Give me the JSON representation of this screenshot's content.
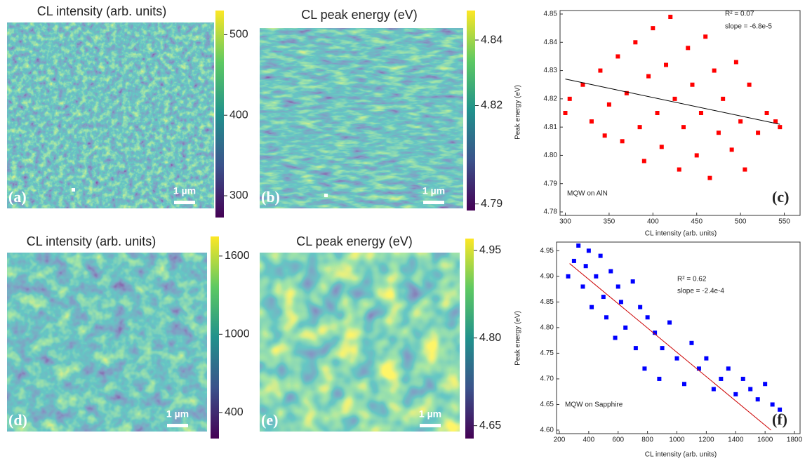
{
  "chart_data": [
    {
      "type": "heatmap",
      "title": "CL intensity (arb. units)",
      "clim": [
        273,
        530
      ],
      "cticks": [
        300,
        400,
        500
      ],
      "panel_label": "(a)",
      "scale_label": "1 µm"
    },
    {
      "type": "heatmap",
      "title": "CL peak energy (eV)",
      "clim": [
        4.788,
        4.849
      ],
      "cticks": [
        4.79,
        4.82,
        4.84
      ],
      "panel_label": "(b)",
      "scale_label": "1 µm"
    },
    {
      "type": "scatter",
      "xlabel": "CL intensity (arb. units)",
      "ylabel": "Peak energy (eV)",
      "panel_label": "(c)",
      "annotations": [
        "R² = 0.07",
        "slope = -6.8e-5",
        "MQW on AlN"
      ],
      "xlim": [
        294,
        568
      ],
      "ylim": [
        4.78,
        4.85
      ],
      "xticks": [
        300,
        350,
        400,
        450,
        500,
        550
      ],
      "yticks": [
        4.78,
        4.79,
        {
          "value": 4.8,
          "label": "4.80"
        },
        4.81,
        4.82,
        4.83,
        4.84,
        4.85
      ],
      "color": "#ff0000",
      "x": [
        300,
        305,
        320,
        330,
        340,
        345,
        350,
        360,
        365,
        370,
        380,
        385,
        390,
        395,
        400,
        405,
        410,
        415,
        420,
        425,
        430,
        435,
        440,
        445,
        450,
        455,
        460,
        465,
        470,
        475,
        480,
        490,
        495,
        500,
        505,
        510,
        520,
        530,
        540,
        545
      ],
      "values": [
        4.815,
        4.82,
        4.825,
        4.812,
        4.83,
        4.807,
        4.818,
        4.835,
        4.805,
        4.822,
        4.84,
        4.81,
        4.798,
        4.828,
        4.845,
        4.815,
        4.803,
        4.832,
        4.849,
        4.82,
        4.795,
        4.81,
        4.838,
        4.825,
        4.8,
        4.815,
        4.842,
        4.792,
        4.83,
        4.808,
        4.82,
        4.802,
        4.833,
        4.812,
        4.795,
        4.825,
        4.808,
        4.815,
        4.812,
        4.81
      ],
      "fit": {
        "x": [
          300,
          545
        ],
        "values": [
          4.827,
          4.811
        ],
        "color": "#000000"
      }
    },
    {
      "type": "heatmap",
      "title": "CL intensity (arb. units)",
      "clim": [
        200,
        1750
      ],
      "cticks": [
        400,
        1000,
        1600
      ],
      "panel_label": "(d)",
      "scale_label": "1 µm"
    },
    {
      "type": "heatmap",
      "title": "CL peak energy (eV)",
      "clim": [
        4.628,
        4.97
      ],
      "cticks": [
        4.65,
        {
          "value": 4.8,
          "label": "4.80"
        },
        4.95
      ],
      "panel_label": "(e)",
      "scale_label": "1 µm"
    },
    {
      "type": "scatter",
      "xlabel": "CL intensity (arb. units)",
      "ylabel": "Peak energy (eV)",
      "panel_label": "(f)",
      "annotations": [
        "R² = 0.62",
        "slope = -2.4e-4",
        "MQW on Sapphire"
      ],
      "xlim": [
        181,
        1838
      ],
      "ylim": [
        4.6,
        4.96
      ],
      "xticks": [
        200,
        400,
        600,
        800,
        1000,
        1200,
        1400,
        1600,
        1800
      ],
      "yticks": [
        {
          "value": 4.6,
          "label": "4.60"
        },
        4.65,
        {
          "value": 4.7,
          "label": "4.70"
        },
        4.75,
        {
          "value": 4.8,
          "label": "4.80"
        },
        4.85,
        {
          "value": 4.9,
          "label": "4.90"
        },
        4.95
      ],
      "color": "#0000ff",
      "x": [
        260,
        300,
        330,
        360,
        380,
        400,
        420,
        450,
        480,
        500,
        520,
        550,
        580,
        600,
        620,
        650,
        700,
        720,
        750,
        780,
        800,
        850,
        880,
        900,
        950,
        1000,
        1050,
        1100,
        1150,
        1200,
        1250,
        1300,
        1350,
        1400,
        1450,
        1500,
        1550,
        1600,
        1650,
        1700
      ],
      "values": [
        4.9,
        4.93,
        4.96,
        4.88,
        4.92,
        4.95,
        4.84,
        4.9,
        4.94,
        4.86,
        4.82,
        4.91,
        4.78,
        4.88,
        4.85,
        4.8,
        4.89,
        4.76,
        4.84,
        4.72,
        4.82,
        4.79,
        4.7,
        4.76,
        4.81,
        4.74,
        4.69,
        4.77,
        4.72,
        4.74,
        4.68,
        4.7,
        4.72,
        4.67,
        4.7,
        4.68,
        4.66,
        4.69,
        4.65,
        4.64
      ],
      "fit": {
        "x": [
          270,
          1640
        ],
        "values": [
          4.925,
          4.6
        ],
        "color": "#cc0000"
      }
    }
  ]
}
